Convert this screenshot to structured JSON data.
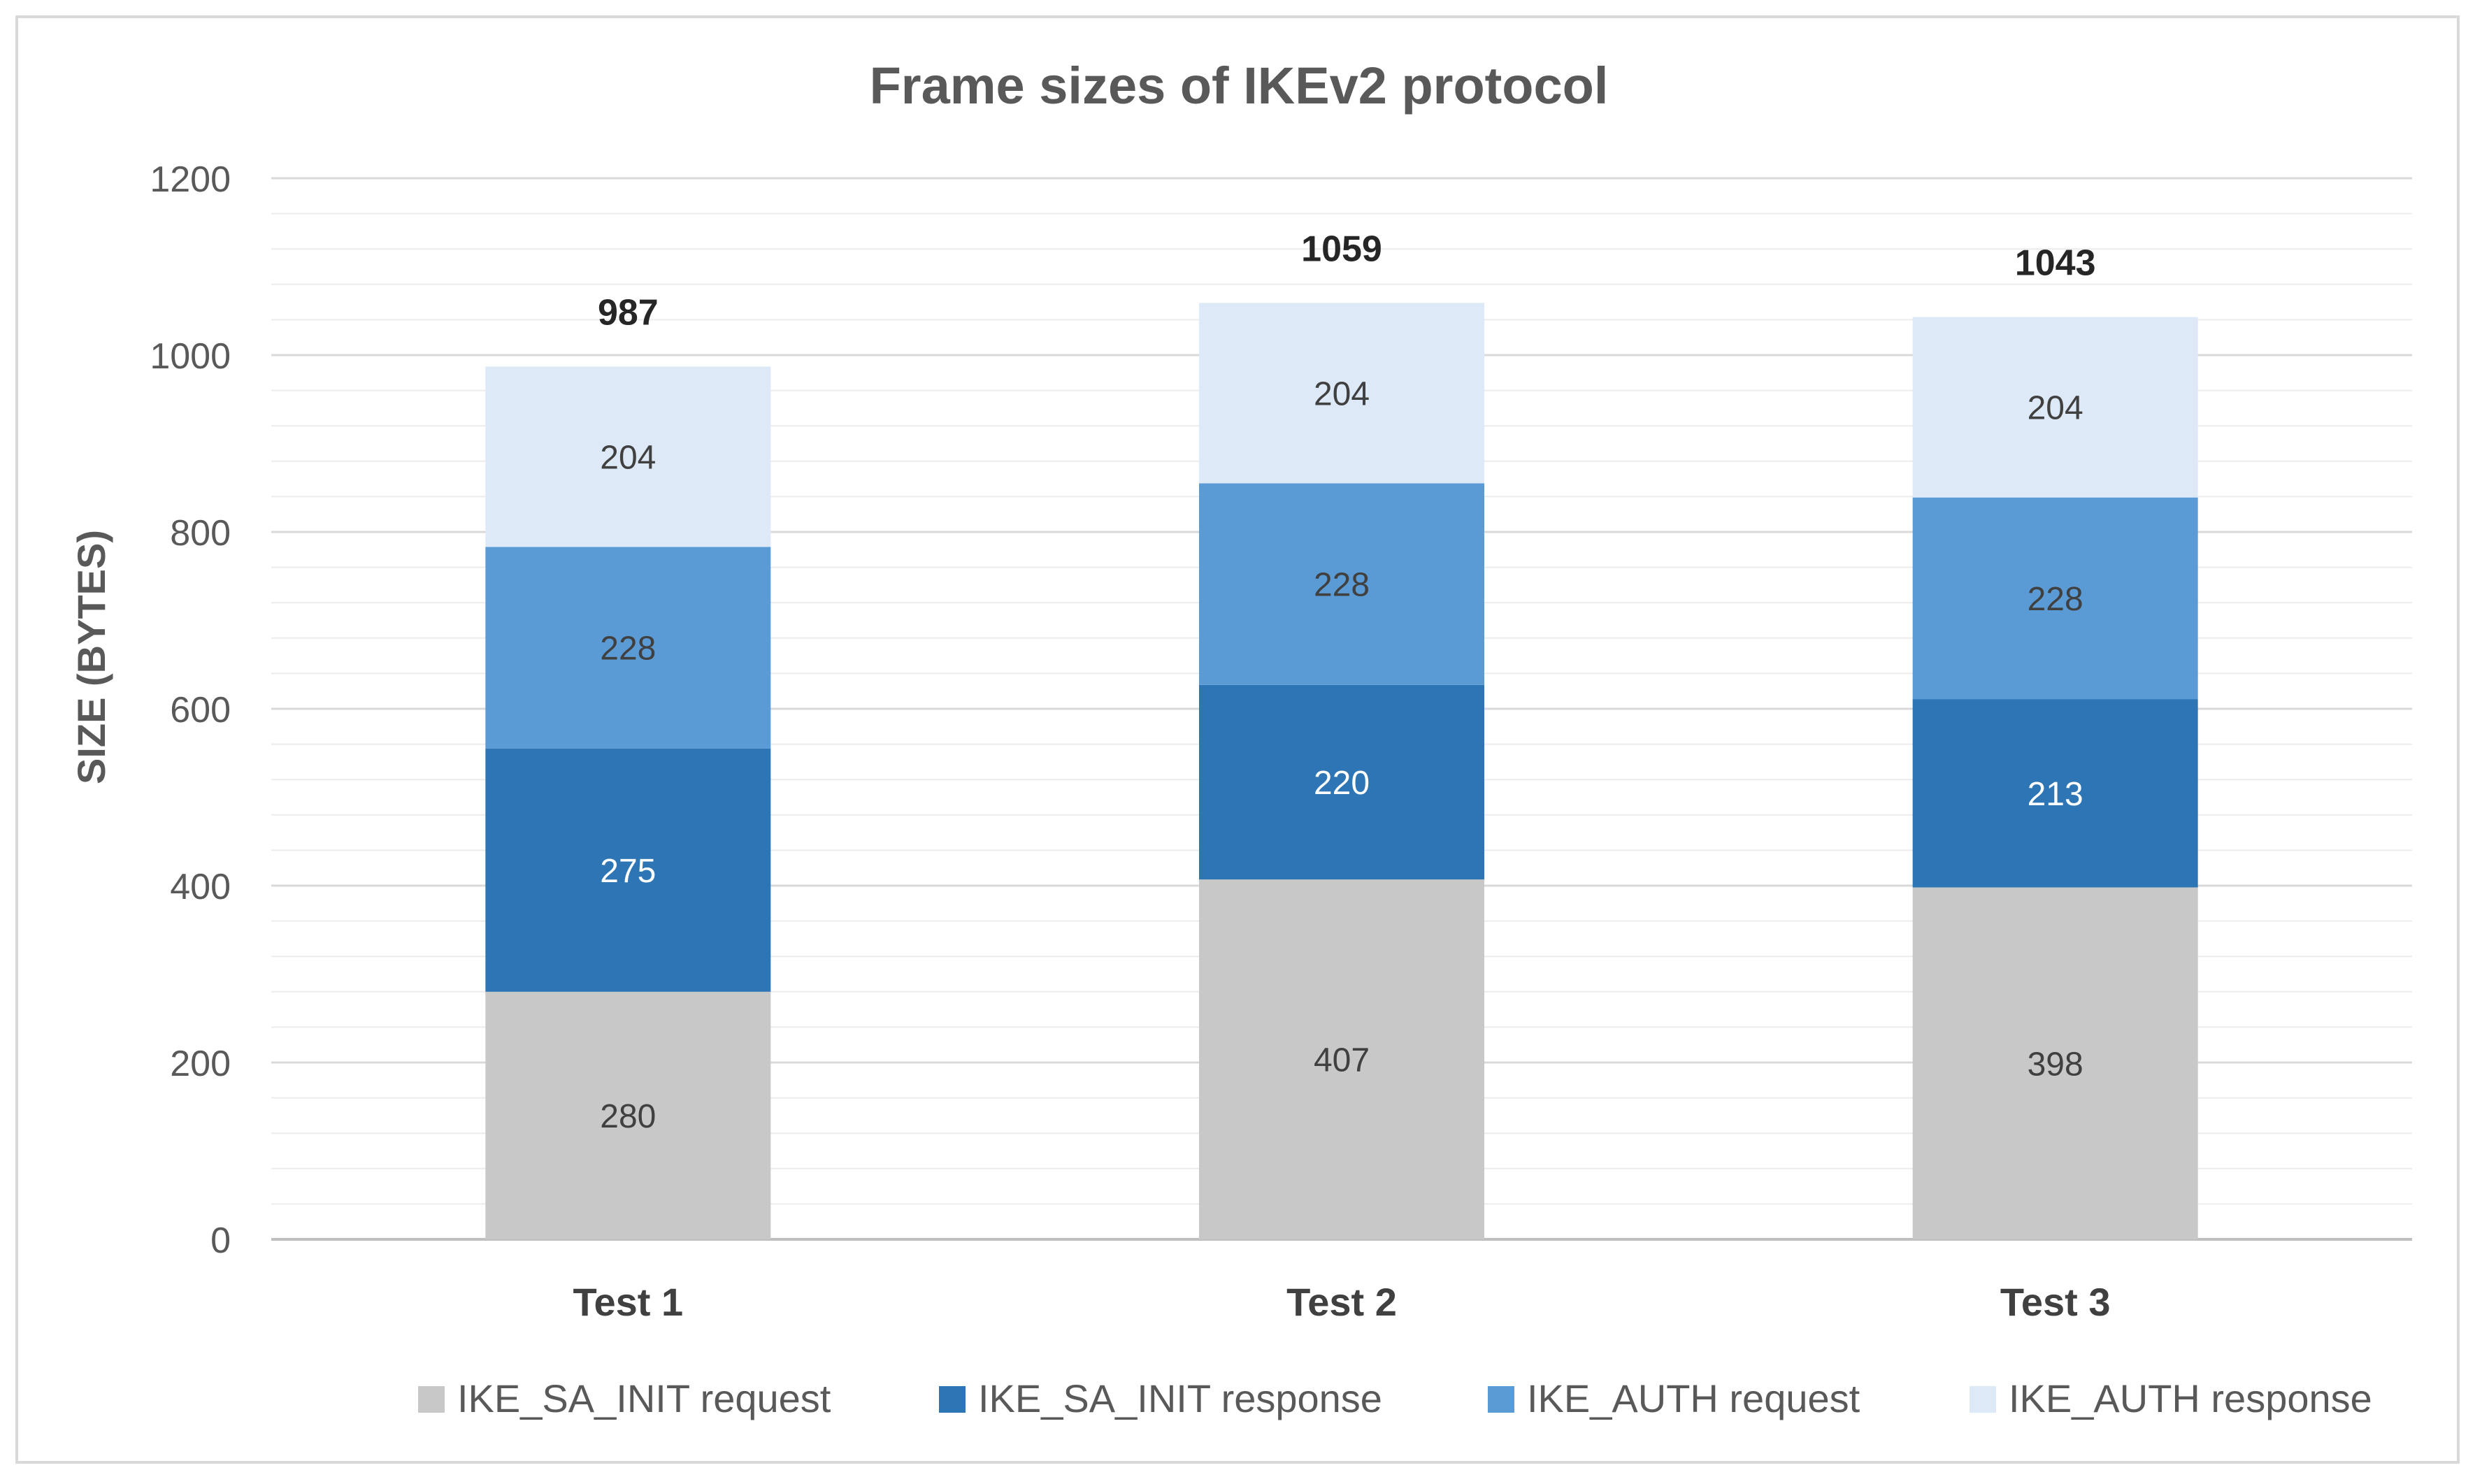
{
  "chart_data": {
    "type": "stacked-bar",
    "title": "Frame sizes of IKEv2 protocol",
    "xlabel": "",
    "ylabel": "SIZE (BYTES)",
    "ylim": [
      0,
      1200
    ],
    "major_ticks": [
      0,
      200,
      400,
      600,
      800,
      1000,
      1200
    ],
    "minor_step": 40,
    "grid": true,
    "legend_position": "bottom",
    "categories": [
      "Test 1",
      "Test 2",
      "Test 3"
    ],
    "series": [
      {
        "name": "IKE_SA_INIT request",
        "color": "#c8c8c8",
        "label_color": "#404040",
        "values": [
          280,
          407,
          398
        ]
      },
      {
        "name": "IKE_SA_INIT response",
        "color": "#2e75b6",
        "label_color": "#ffffff",
        "values": [
          275,
          220,
          213
        ]
      },
      {
        "name": "IKE_AUTH request",
        "color": "#5b9bd5",
        "label_color": "#404040",
        "values": [
          228,
          228,
          228
        ]
      },
      {
        "name": "IKE_AUTH response",
        "color": "#dde9f6",
        "label_color": "#404040",
        "values": [
          204,
          204,
          204
        ]
      }
    ],
    "totals": [
      987,
      1059,
      1043
    ],
    "colors": {
      "title": "#595959",
      "axis_text": "#595959",
      "category_text": "#404040",
      "gridline_major": "#d9d9d9",
      "gridline_minor": "#ececec",
      "border": "#d9d9d9"
    }
  }
}
